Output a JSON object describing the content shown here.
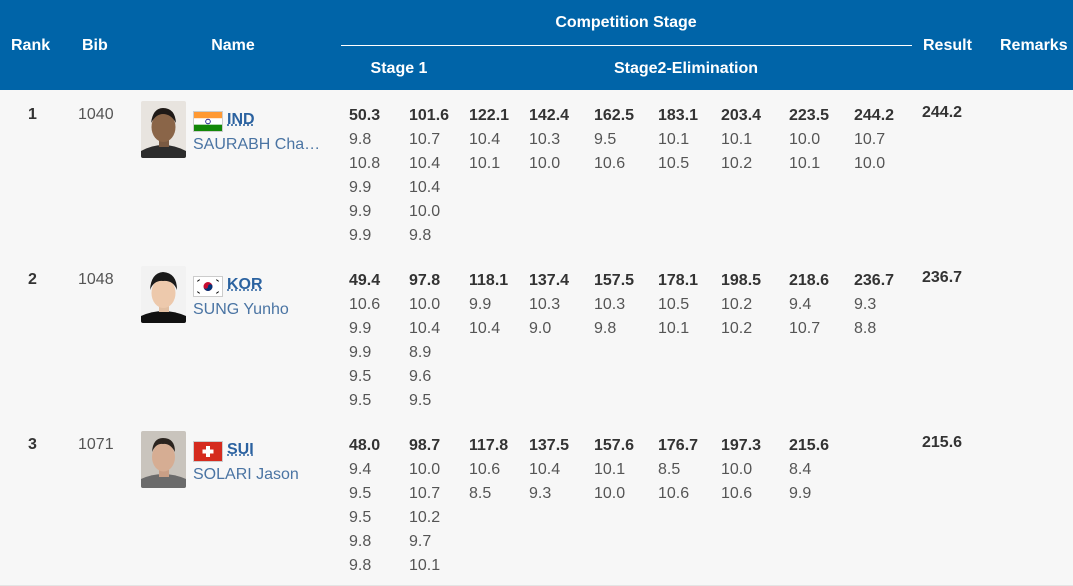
{
  "table": {
    "headers": {
      "rank": "Rank",
      "bib": "Bib",
      "name": "Name",
      "competition_stage": "Competition Stage",
      "stage1": "Stage 1",
      "stage2": "Stage2-Elimination",
      "result": "Result",
      "remarks": "Remarks"
    },
    "rows": [
      {
        "rank": "1",
        "bib": "1040",
        "nat": "IND",
        "name": "SAURABH Chaudhary",
        "columns": [
          {
            "total": "50.3",
            "shots": [
              "9.8",
              "10.8",
              "9.9",
              "9.9",
              "9.9"
            ]
          },
          {
            "total": "101.6",
            "shots": [
              "10.7",
              "10.4",
              "10.4",
              "10.0",
              "9.8"
            ]
          },
          {
            "total": "122.1",
            "shots": [
              "10.4",
              "10.1"
            ]
          },
          {
            "total": "142.4",
            "shots": [
              "10.3",
              "10.0"
            ]
          },
          {
            "total": "162.5",
            "shots": [
              "9.5",
              "10.6"
            ]
          },
          {
            "total": "183.1",
            "shots": [
              "10.1",
              "10.5"
            ]
          },
          {
            "total": "203.4",
            "shots": [
              "10.1",
              "10.2"
            ]
          },
          {
            "total": "223.5",
            "shots": [
              "10.0",
              "10.1"
            ]
          },
          {
            "total": "244.2",
            "shots": [
              "10.7",
              "10.0"
            ]
          }
        ],
        "result": "244.2",
        "remarks": ""
      },
      {
        "rank": "2",
        "bib": "1048",
        "nat": "KOR",
        "name": "SUNG Yunho",
        "columns": [
          {
            "total": "49.4",
            "shots": [
              "10.6",
              "9.9",
              "9.9",
              "9.5",
              "9.5"
            ]
          },
          {
            "total": "97.8",
            "shots": [
              "10.0",
              "10.4",
              "8.9",
              "9.6",
              "9.5"
            ]
          },
          {
            "total": "118.1",
            "shots": [
              "9.9",
              "10.4"
            ]
          },
          {
            "total": "137.4",
            "shots": [
              "10.3",
              "9.0"
            ]
          },
          {
            "total": "157.5",
            "shots": [
              "10.3",
              "9.8"
            ]
          },
          {
            "total": "178.1",
            "shots": [
              "10.5",
              "10.1"
            ]
          },
          {
            "total": "198.5",
            "shots": [
              "10.2",
              "10.2"
            ]
          },
          {
            "total": "218.6",
            "shots": [
              "9.4",
              "10.7"
            ]
          },
          {
            "total": "236.7",
            "shots": [
              "9.3",
              "8.8"
            ]
          }
        ],
        "result": "236.7",
        "remarks": ""
      },
      {
        "rank": "3",
        "bib": "1071",
        "nat": "SUI",
        "name": "SOLARI Jason",
        "columns": [
          {
            "total": "48.0",
            "shots": [
              "9.4",
              "9.5",
              "9.5",
              "9.8",
              "9.8"
            ]
          },
          {
            "total": "98.7",
            "shots": [
              "10.0",
              "10.7",
              "10.2",
              "9.7",
              "10.1"
            ]
          },
          {
            "total": "117.8",
            "shots": [
              "10.6",
              "8.5"
            ]
          },
          {
            "total": "137.5",
            "shots": [
              "10.4",
              "9.3"
            ]
          },
          {
            "total": "157.6",
            "shots": [
              "10.1",
              "10.0"
            ]
          },
          {
            "total": "176.7",
            "shots": [
              "8.5",
              "10.6"
            ]
          },
          {
            "total": "197.3",
            "shots": [
              "10.0",
              "10.6"
            ]
          },
          {
            "total": "215.6",
            "shots": [
              "8.4",
              "9.9"
            ]
          },
          {
            "total": "",
            "shots": []
          }
        ],
        "result": "215.6",
        "remarks": ""
      }
    ]
  },
  "colors": {
    "header_bg": "#0064a8",
    "row_bg": "#f7f7f7",
    "link_blue": "#4a74a3"
  },
  "icons": {
    "flag_ind": "india-flag-icon",
    "flag_kor": "korea-flag-icon",
    "flag_sui": "switzerland-flag-icon"
  }
}
